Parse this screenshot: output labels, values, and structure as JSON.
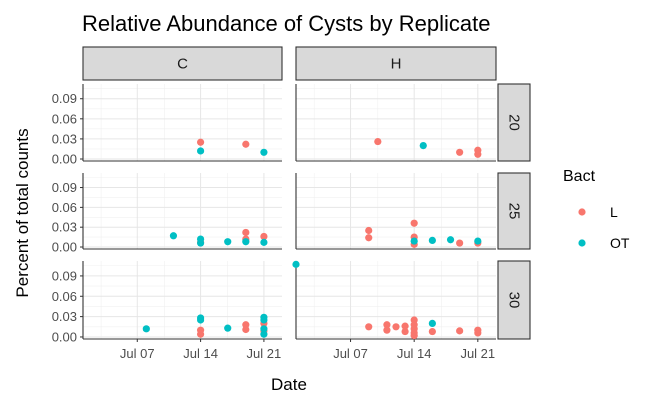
{
  "chart_data": {
    "type": "scatter",
    "title": "Relative Abundance of Cysts by Replicate",
    "xlabel": "Date",
    "ylabel": "Percent of total counts",
    "x_ticks": [
      "Jul 07",
      "Jul 14",
      "Jul 21"
    ],
    "y_ticks": [
      "0.00",
      "0.03",
      "0.06",
      "0.09"
    ],
    "xlim": [
      "2020-07-01",
      "2020-07-23"
    ],
    "ylim": [
      -0.003,
      0.112
    ],
    "column_facets": [
      "C",
      "H"
    ],
    "row_facets": [
      "20",
      "25",
      "30"
    ],
    "grid": true,
    "legend": {
      "title": "Bact",
      "placement": "right",
      "entries": [
        {
          "label": "L",
          "color": "#F8766D"
        },
        {
          "label": "OT",
          "color": "#00BFC4"
        }
      ]
    },
    "series": [
      {
        "name": "L",
        "color": "#F8766D",
        "points": [
          {
            "col": "C",
            "row": "20",
            "x": "2020-07-14",
            "y": 0.025
          },
          {
            "col": "C",
            "row": "20",
            "x": "2020-07-19",
            "y": 0.022
          },
          {
            "col": "H",
            "row": "20",
            "x": "2020-07-10",
            "y": 0.026
          },
          {
            "col": "H",
            "row": "20",
            "x": "2020-07-19",
            "y": 0.01
          },
          {
            "col": "H",
            "row": "20",
            "x": "2020-07-21",
            "y": 0.013
          },
          {
            "col": "H",
            "row": "20",
            "x": "2020-07-21",
            "y": 0.007
          },
          {
            "col": "C",
            "row": "25",
            "x": "2020-07-14",
            "y": 0.007
          },
          {
            "col": "C",
            "row": "25",
            "x": "2020-07-19",
            "y": 0.022
          },
          {
            "col": "C",
            "row": "25",
            "x": "2020-07-19",
            "y": 0.012
          },
          {
            "col": "C",
            "row": "25",
            "x": "2020-07-21",
            "y": 0.016
          },
          {
            "col": "H",
            "row": "25",
            "x": "2020-07-09",
            "y": 0.025
          },
          {
            "col": "H",
            "row": "25",
            "x": "2020-07-09",
            "y": 0.014
          },
          {
            "col": "H",
            "row": "25",
            "x": "2020-07-14",
            "y": 0.036
          },
          {
            "col": "H",
            "row": "25",
            "x": "2020-07-14",
            "y": 0.015
          },
          {
            "col": "H",
            "row": "25",
            "x": "2020-07-14",
            "y": 0.004
          },
          {
            "col": "H",
            "row": "25",
            "x": "2020-07-19",
            "y": 0.006
          },
          {
            "col": "H",
            "row": "25",
            "x": "2020-07-21",
            "y": 0.006
          },
          {
            "col": "C",
            "row": "30",
            "x": "2020-07-14",
            "y": 0.01
          },
          {
            "col": "C",
            "row": "30",
            "x": "2020-07-14",
            "y": 0.004
          },
          {
            "col": "C",
            "row": "30",
            "x": "2020-07-19",
            "y": 0.018
          },
          {
            "col": "C",
            "row": "30",
            "x": "2020-07-19",
            "y": 0.011
          },
          {
            "col": "C",
            "row": "30",
            "x": "2020-07-21",
            "y": 0.02
          },
          {
            "col": "C",
            "row": "30",
            "x": "2020-07-21",
            "y": 0.009
          },
          {
            "col": "H",
            "row": "30",
            "x": "2020-07-09",
            "y": 0.015
          },
          {
            "col": "H",
            "row": "30",
            "x": "2020-07-11",
            "y": 0.018
          },
          {
            "col": "H",
            "row": "30",
            "x": "2020-07-11",
            "y": 0.01
          },
          {
            "col": "H",
            "row": "30",
            "x": "2020-07-12",
            "y": 0.015
          },
          {
            "col": "H",
            "row": "30",
            "x": "2020-07-13",
            "y": 0.016
          },
          {
            "col": "H",
            "row": "30",
            "x": "2020-07-13",
            "y": 0.008
          },
          {
            "col": "H",
            "row": "30",
            "x": "2020-07-14",
            "y": 0.025
          },
          {
            "col": "H",
            "row": "30",
            "x": "2020-07-14",
            "y": 0.018
          },
          {
            "col": "H",
            "row": "30",
            "x": "2020-07-14",
            "y": 0.012
          },
          {
            "col": "H",
            "row": "30",
            "x": "2020-07-14",
            "y": 0.006
          },
          {
            "col": "H",
            "row": "30",
            "x": "2020-07-14",
            "y": 0.002
          },
          {
            "col": "H",
            "row": "30",
            "x": "2020-07-16",
            "y": 0.008
          },
          {
            "col": "H",
            "row": "30",
            "x": "2020-07-19",
            "y": 0.009
          },
          {
            "col": "H",
            "row": "30",
            "x": "2020-07-21",
            "y": 0.01
          },
          {
            "col": "H",
            "row": "30",
            "x": "2020-07-21",
            "y": 0.006
          }
        ]
      },
      {
        "name": "OT",
        "color": "#00BFC4",
        "points": [
          {
            "col": "C",
            "row": "20",
            "x": "2020-07-14",
            "y": 0.012
          },
          {
            "col": "C",
            "row": "20",
            "x": "2020-07-21",
            "y": 0.01
          },
          {
            "col": "H",
            "row": "20",
            "x": "2020-07-15",
            "y": 0.02
          },
          {
            "col": "C",
            "row": "25",
            "x": "2020-07-11",
            "y": 0.017
          },
          {
            "col": "C",
            "row": "25",
            "x": "2020-07-14",
            "y": 0.012
          },
          {
            "col": "C",
            "row": "25",
            "x": "2020-07-14",
            "y": 0.006
          },
          {
            "col": "C",
            "row": "25",
            "x": "2020-07-17",
            "y": 0.008
          },
          {
            "col": "C",
            "row": "25",
            "x": "2020-07-19",
            "y": 0.008
          },
          {
            "col": "C",
            "row": "25",
            "x": "2020-07-21",
            "y": 0.007
          },
          {
            "col": "H",
            "row": "25",
            "x": "2020-07-14",
            "y": 0.009
          },
          {
            "col": "H",
            "row": "25",
            "x": "2020-07-16",
            "y": 0.01
          },
          {
            "col": "H",
            "row": "25",
            "x": "2020-07-18",
            "y": 0.011
          },
          {
            "col": "H",
            "row": "25",
            "x": "2020-07-21",
            "y": 0.009
          },
          {
            "col": "C",
            "row": "30",
            "x": "2020-07-08",
            "y": 0.012
          },
          {
            "col": "C",
            "row": "30",
            "x": "2020-07-14",
            "y": 0.028
          },
          {
            "col": "C",
            "row": "30",
            "x": "2020-07-14",
            "y": 0.025
          },
          {
            "col": "C",
            "row": "30",
            "x": "2020-07-17",
            "y": 0.013
          },
          {
            "col": "C",
            "row": "30",
            "x": "2020-07-21",
            "y": 0.029
          },
          {
            "col": "C",
            "row": "30",
            "x": "2020-07-21",
            "y": 0.025
          },
          {
            "col": "C",
            "row": "30",
            "x": "2020-07-21",
            "y": 0.012
          },
          {
            "col": "C",
            "row": "30",
            "x": "2020-07-21",
            "y": 0.004
          },
          {
            "col": "H",
            "row": "30",
            "x": "2020-07-01",
            "y": 0.107
          },
          {
            "col": "H",
            "row": "30",
            "x": "2020-07-16",
            "y": 0.02
          }
        ]
      }
    ]
  }
}
